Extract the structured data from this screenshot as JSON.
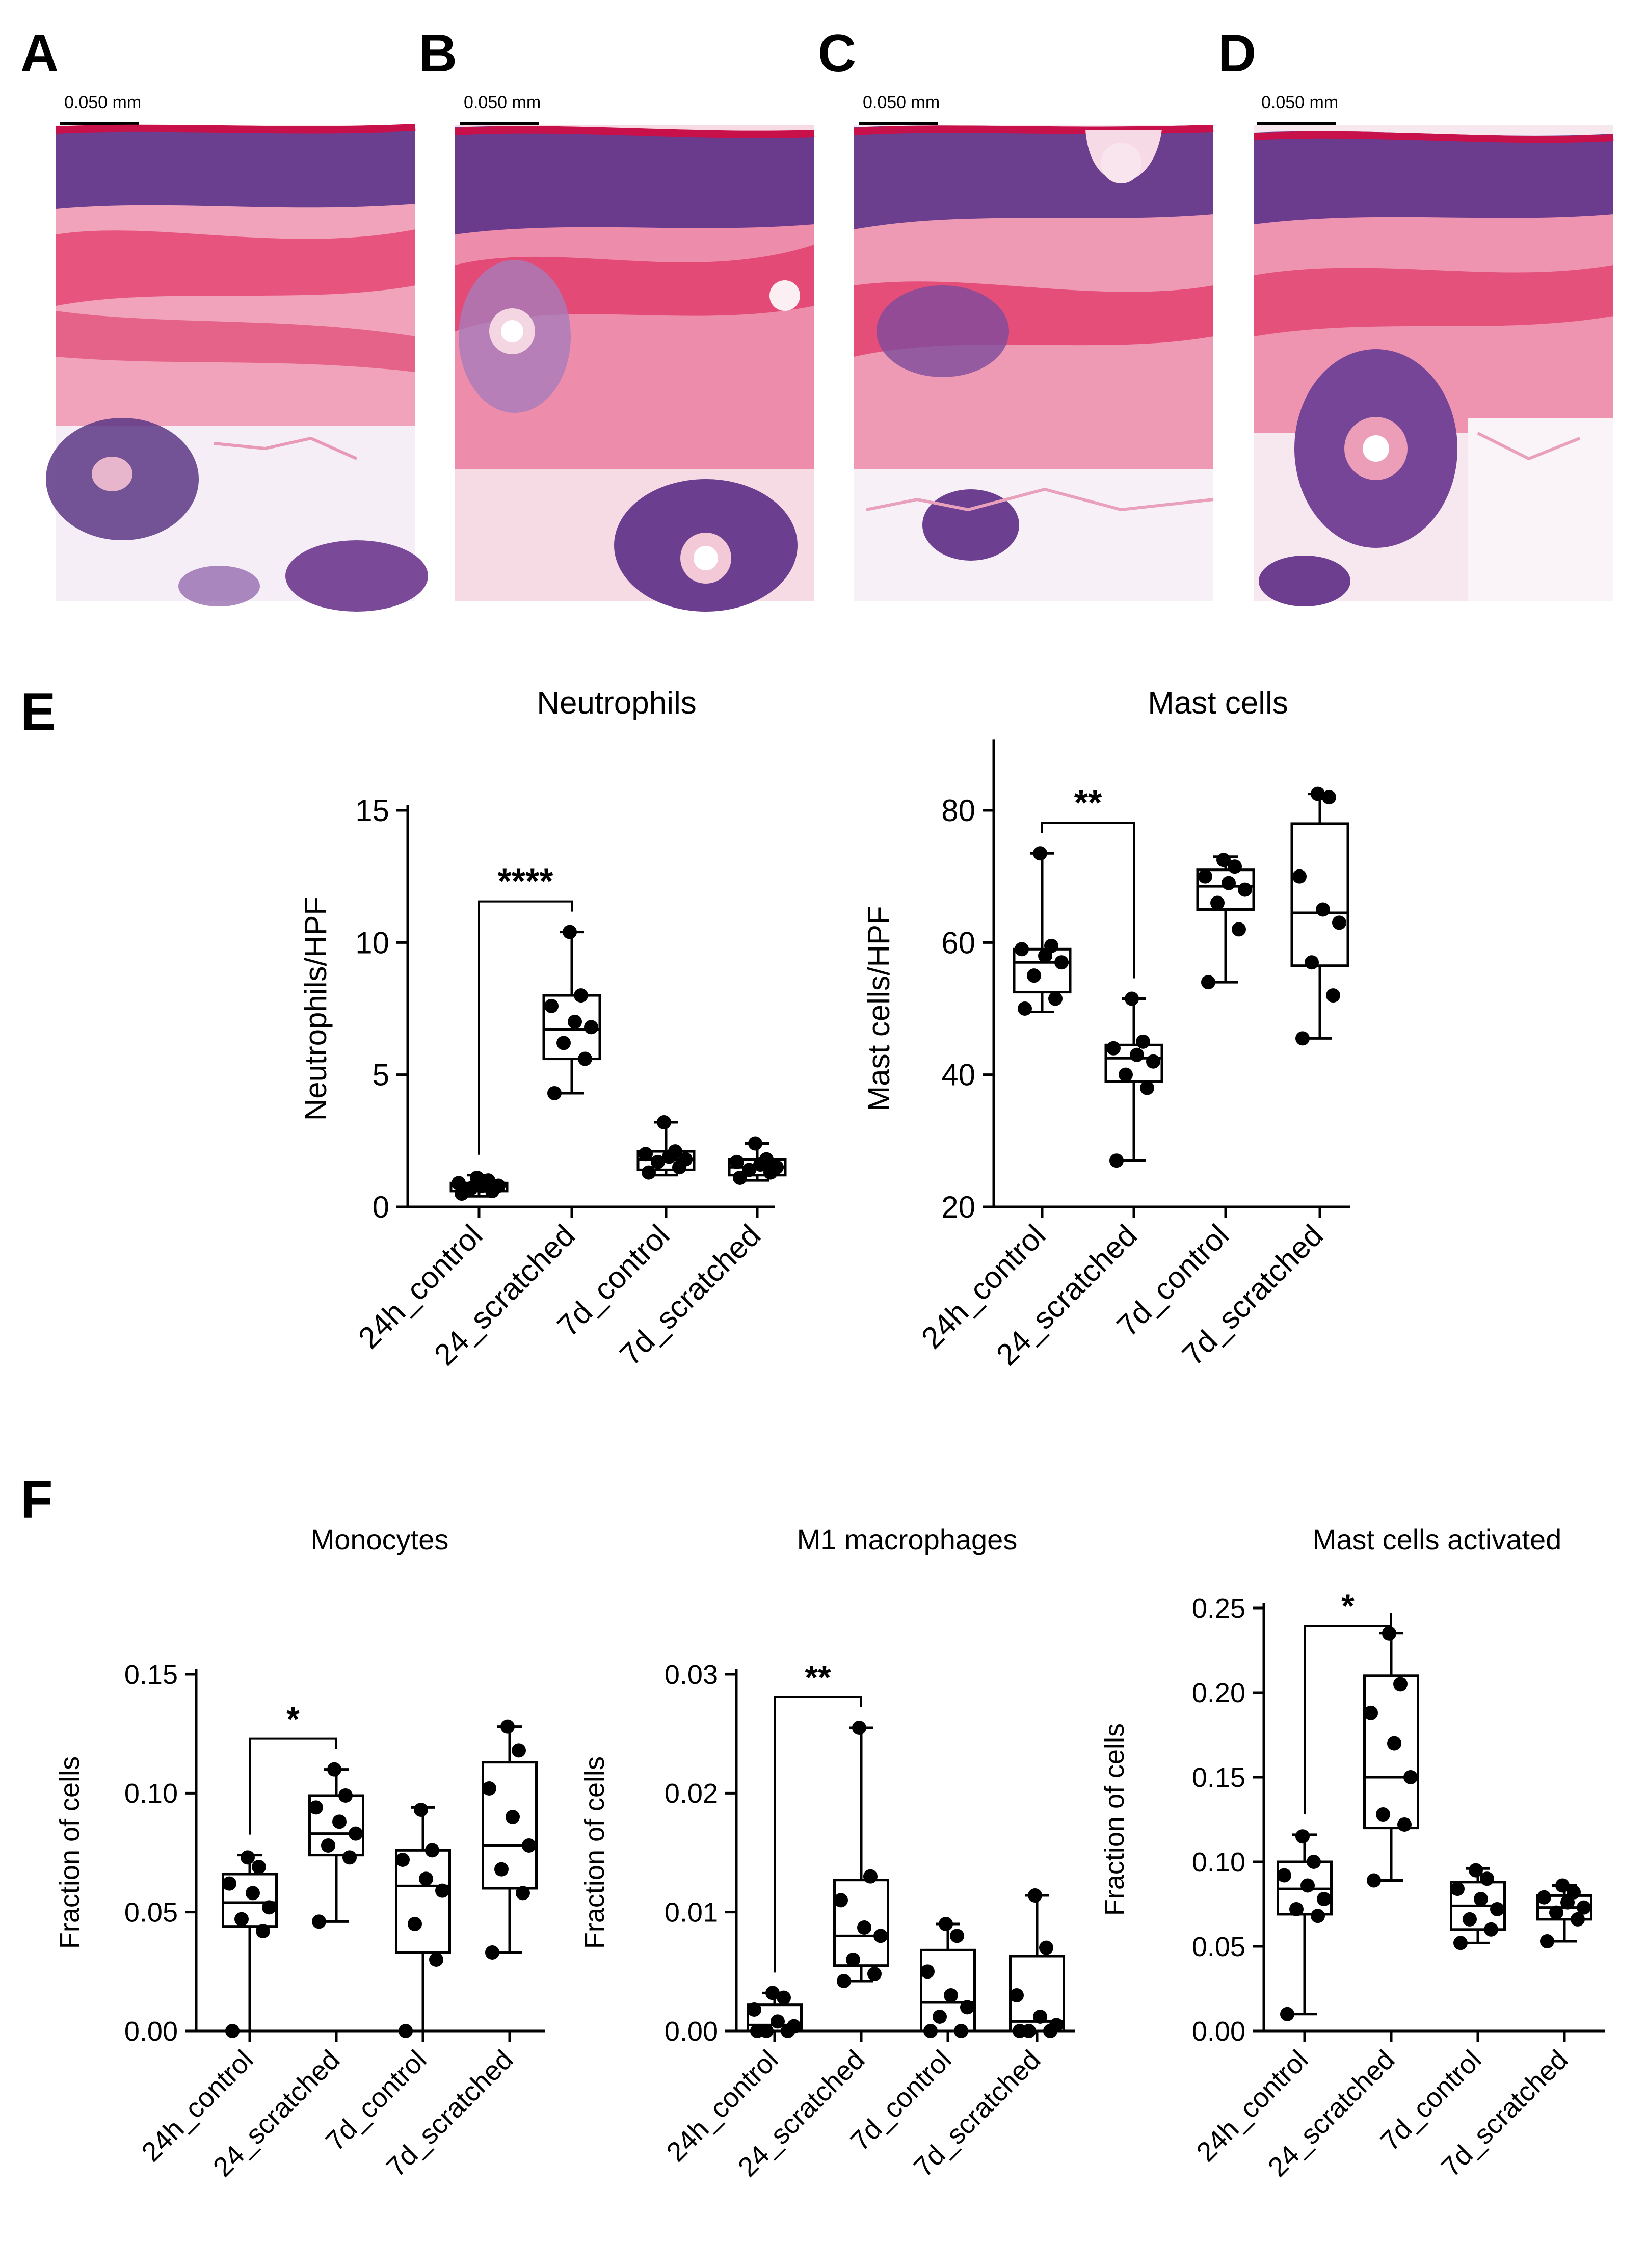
{
  "panels": {
    "micrographs": [
      {
        "letter": "A",
        "scale_label": "0.050 mm"
      },
      {
        "letter": "B",
        "scale_label": "0.050 mm"
      },
      {
        "letter": "C",
        "scale_label": "0.050 mm"
      },
      {
        "letter": "D",
        "scale_label": "0.050 mm"
      }
    ],
    "E": {
      "letter": "E"
    },
    "F": {
      "letter": "F"
    }
  },
  "colors": {
    "epidermis_nuclei": "#4a2f7a",
    "stratum_corneum": "#c8104a",
    "collagen": "#e63c6c",
    "collagen_light": "#f2a7bd",
    "adipose": "#f8f2f8",
    "background": "#ffffff",
    "ink": "#000000"
  },
  "chart_data": [
    {
      "type": "box",
      "title": "Neutrophils",
      "ylabel": "Neutrophils/HPF",
      "categories": [
        "24h_control",
        "24_scratched",
        "7d_control",
        "7d_scratched"
      ],
      "yticks": [
        0,
        5,
        10,
        15
      ],
      "ylim": [
        0,
        15
      ],
      "boxes": [
        {
          "min": 0.4,
          "q1": 0.6,
          "median": 0.8,
          "q3": 0.9,
          "max": 1.2
        },
        {
          "min": 4.3,
          "q1": 5.6,
          "median": 6.7,
          "q3": 8.0,
          "max": 10.4
        },
        {
          "min": 1.2,
          "q1": 1.4,
          "median": 1.8,
          "q3": 2.1,
          "max": 3.2
        },
        {
          "min": 1.0,
          "q1": 1.2,
          "median": 1.5,
          "q3": 1.8,
          "max": 2.4
        }
      ],
      "points": [
        [
          0.5,
          0.6,
          0.7,
          0.8,
          0.8,
          0.9,
          1.0,
          1.1
        ],
        [
          4.3,
          5.6,
          6.2,
          6.8,
          7.0,
          7.6,
          8.0,
          10.4
        ],
        [
          1.3,
          1.5,
          1.7,
          1.8,
          1.9,
          2.0,
          2.1,
          3.2
        ],
        [
          1.1,
          1.3,
          1.4,
          1.5,
          1.6,
          1.7,
          1.8,
          2.4
        ]
      ],
      "significance": [
        {
          "from": 0,
          "to": 1,
          "label": "****"
        }
      ]
    },
    {
      "type": "box",
      "title": "Mast cells",
      "ylabel": "Mast cells/HPF",
      "categories": [
        "24h_control",
        "24_scratched",
        "7d_control",
        "7d_scratched"
      ],
      "yticks": [
        20,
        40,
        60,
        80
      ],
      "ylim": [
        20,
        90
      ],
      "boxes": [
        {
          "min": 49.5,
          "q1": 52.5,
          "median": 57,
          "q3": 59,
          "max": 73.5
        },
        {
          "min": 27,
          "q1": 39,
          "median": 42.5,
          "q3": 44.5,
          "max": 51.5
        },
        {
          "min": 54,
          "q1": 65,
          "median": 68.5,
          "q3": 71,
          "max": 73
        },
        {
          "min": 45.5,
          "q1": 56.5,
          "median": 64.5,
          "q3": 78,
          "max": 82.5
        }
      ],
      "points": [
        [
          50,
          51.5,
          55,
          57,
          58,
          59,
          59.5,
          73.5
        ],
        [
          27,
          38,
          40,
          42,
          43,
          44,
          45,
          51.5
        ],
        [
          54,
          62,
          66,
          68,
          69,
          70,
          71.5,
          72.5
        ],
        [
          45.5,
          52,
          57,
          63,
          65,
          70,
          82,
          82.5
        ]
      ],
      "significance": [
        {
          "from": 0,
          "to": 1,
          "label": "**"
        }
      ]
    },
    {
      "type": "box",
      "title": "Monocytes",
      "ylabel": "Fraction of cells",
      "categories": [
        "24h_control",
        "24_scratched",
        "7d_control",
        "7d_scratched"
      ],
      "yticks": [
        "0.00",
        "0.05",
        "0.10",
        "0.15"
      ],
      "ylim": [
        0,
        0.15
      ],
      "boxes": [
        {
          "min": 0.0,
          "q1": 0.044,
          "median": 0.054,
          "q3": 0.066,
          "max": 0.074
        },
        {
          "min": 0.046,
          "q1": 0.074,
          "median": 0.083,
          "q3": 0.099,
          "max": 0.11
        },
        {
          "min": 0.0,
          "q1": 0.033,
          "median": 0.061,
          "q3": 0.076,
          "max": 0.094
        },
        {
          "min": 0.033,
          "q1": 0.06,
          "median": 0.078,
          "q3": 0.113,
          "max": 0.128
        }
      ],
      "points": [
        [
          0.0,
          0.042,
          0.047,
          0.052,
          0.058,
          0.062,
          0.069,
          0.073
        ],
        [
          0.046,
          0.073,
          0.078,
          0.083,
          0.088,
          0.094,
          0.099,
          0.11
        ],
        [
          0.0,
          0.03,
          0.045,
          0.059,
          0.064,
          0.072,
          0.076,
          0.093
        ],
        [
          0.033,
          0.058,
          0.068,
          0.078,
          0.09,
          0.102,
          0.118,
          0.128
        ]
      ],
      "significance": [
        {
          "from": 0,
          "to": 1,
          "label": "*"
        }
      ]
    },
    {
      "type": "box",
      "title": "M1 macrophages",
      "ylabel": "Fraction of cells",
      "categories": [
        "24h_control",
        "24_scratched",
        "7d_control",
        "7d_scratched"
      ],
      "yticks": [
        "0.00",
        "0.01",
        "0.02",
        "0.03"
      ],
      "ylim": [
        0,
        0.03
      ],
      "boxes": [
        {
          "min": 0.0,
          "q1": 0.0,
          "median": 0.0005,
          "q3": 0.0022,
          "max": 0.0032
        },
        {
          "min": 0.0042,
          "q1": 0.0055,
          "median": 0.008,
          "q3": 0.0127,
          "max": 0.0255
        },
        {
          "min": 0.0,
          "q1": 0.0,
          "median": 0.0024,
          "q3": 0.0068,
          "max": 0.009
        },
        {
          "min": 0.0,
          "q1": 0.0,
          "median": 0.0008,
          "q3": 0.0063,
          "max": 0.0114
        }
      ],
      "points": [
        [
          0.0,
          0.0,
          0.0,
          0.0004,
          0.0008,
          0.0018,
          0.0028,
          0.0032
        ],
        [
          0.0042,
          0.0048,
          0.006,
          0.008,
          0.0087,
          0.011,
          0.013,
          0.0255
        ],
        [
          0.0,
          0.0,
          0.0012,
          0.002,
          0.003,
          0.005,
          0.008,
          0.009
        ],
        [
          0.0,
          0.0,
          0.0,
          0.0005,
          0.0012,
          0.003,
          0.007,
          0.0114
        ]
      ],
      "significance": [
        {
          "from": 0,
          "to": 1,
          "label": "**"
        }
      ]
    },
    {
      "type": "box",
      "title": "Mast cells activated",
      "ylabel": "Fraction of cells",
      "categories": [
        "24h_control",
        "24_scratched",
        "7d_control",
        "7d_scratched"
      ],
      "yticks": [
        "0.00",
        "0.05",
        "0.10",
        "0.15",
        "0.20",
        "0.25"
      ],
      "ylim": [
        0,
        0.25
      ],
      "boxes": [
        {
          "min": 0.01,
          "q1": 0.069,
          "median": 0.084,
          "q3": 0.1,
          "max": 0.116
        },
        {
          "min": 0.089,
          "q1": 0.12,
          "median": 0.15,
          "q3": 0.21,
          "max": 0.235
        },
        {
          "min": 0.052,
          "q1": 0.06,
          "median": 0.074,
          "q3": 0.088,
          "max": 0.096
        },
        {
          "min": 0.053,
          "q1": 0.066,
          "median": 0.073,
          "q3": 0.08,
          "max": 0.086
        }
      ],
      "points": [
        [
          0.01,
          0.068,
          0.072,
          0.078,
          0.086,
          0.092,
          0.1,
          0.115
        ],
        [
          0.089,
          0.122,
          0.128,
          0.15,
          0.17,
          0.188,
          0.205,
          0.235
        ],
        [
          0.052,
          0.06,
          0.066,
          0.072,
          0.078,
          0.084,
          0.09,
          0.095
        ],
        [
          0.053,
          0.066,
          0.07,
          0.073,
          0.076,
          0.079,
          0.082,
          0.086
        ]
      ],
      "significance": [
        {
          "from": 0,
          "to": 1,
          "label": "*"
        }
      ]
    }
  ]
}
